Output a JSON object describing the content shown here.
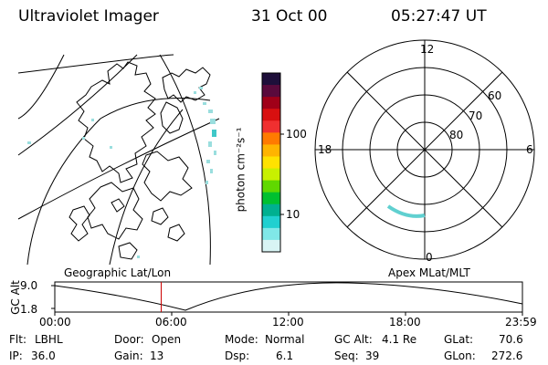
{
  "header": {
    "instrument": "Ultraviolet Imager",
    "date": "31 Oct 00",
    "time": "05:27:47 UT"
  },
  "colorbar": {
    "unit_label": "photon cm⁻²s⁻¹",
    "ticks": [
      "100",
      "10"
    ],
    "colors": [
      "#1e0f3a",
      "#5a0a3c",
      "#a00018",
      "#d81010",
      "#f03030",
      "#ff7a00",
      "#ffb400",
      "#ffe200",
      "#c8f000",
      "#60d800",
      "#00c030",
      "#00b090",
      "#20d0d0",
      "#80e8e8",
      "#d8f4f4"
    ]
  },
  "polar_plot": {
    "mlt_labels": {
      "top": "12",
      "left": "18",
      "right": "6",
      "bottom": "0"
    },
    "lat_labels": [
      "60",
      "70",
      "80"
    ]
  },
  "projection_labels": {
    "left": "Geographic Lat/Lon",
    "right": "Apex MLat/MLT"
  },
  "altitude_plot": {
    "ylabel": "GC Alt",
    "y_ticks": [
      "9.0",
      "1.8"
    ],
    "x_ticks": [
      "00:00",
      "06:00",
      "12:00",
      "18:00",
      "23:59"
    ],
    "current_time_hours": 5.46,
    "marker_color": "#cc0000"
  },
  "info": {
    "row1": [
      {
        "key": "Flt:",
        "value": "LBHL"
      },
      {
        "key": "Door:",
        "value": "Open"
      },
      {
        "key": "Mode:",
        "value": "Normal"
      },
      {
        "key": "GC Alt:",
        "value": "4.1 Re"
      },
      {
        "key": "GLat:",
        "value": "70.6"
      }
    ],
    "row2": [
      {
        "key": "IP:",
        "value": "36.0"
      },
      {
        "key": "Gain:",
        "value": "13"
      },
      {
        "key": "Dsp:",
        "value": "6.1"
      },
      {
        "key": "Seq:",
        "value": "39"
      },
      {
        "key": "GLon:",
        "value": "272.6"
      }
    ]
  }
}
